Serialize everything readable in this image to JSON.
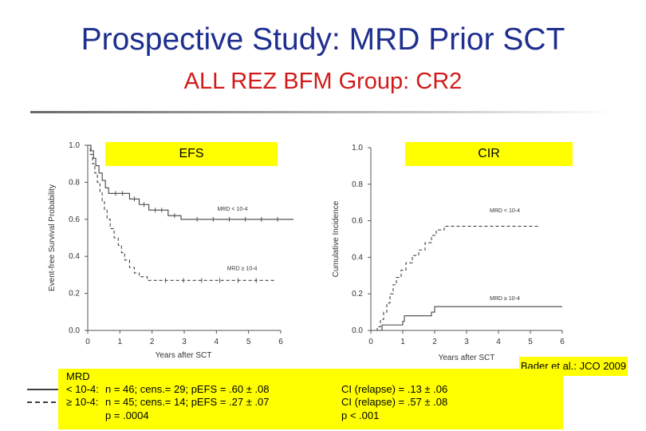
{
  "slide": {
    "title": "Prospective Study: MRD Prior SCT",
    "subtitle": "ALL REZ BFM Group: CR2",
    "citation": "Bader et al.: JCO 2009"
  },
  "legend": {
    "header": "MRD",
    "low_label": "< 10-4:",
    "high_label": "≥ 10-4:",
    "low_stats": "n = 46; cens.= 29; pEFS = .60 ± .08",
    "high_stats": "n = 45; cens.= 14; pEFS = .27 ± .07",
    "efs_pvalue": "p = .0004",
    "ci_low": "CI (relapse) = .13 ± .06",
    "ci_high": "CI (relapse) = .57 ± .08",
    "ci_pvalue": "p < .001"
  },
  "chart_data": [
    {
      "type": "line",
      "title": "EFS",
      "xlabel": "Years after SCT",
      "ylabel": "Event-free Survival Probability",
      "xlim": [
        0,
        6
      ],
      "ylim": [
        0,
        1
      ],
      "x_ticks": [
        "0",
        "1",
        "2",
        "3",
        "4",
        "5",
        "6"
      ],
      "y_ticks": [
        "0.0",
        "0.2",
        "0.4",
        "0.6",
        "0.8",
        "1.0"
      ],
      "series": [
        {
          "name": "MRD < 10-4",
          "style": "solid",
          "points": [
            [
              0,
              1.0
            ],
            [
              0.1,
              0.97
            ],
            [
              0.18,
              0.93
            ],
            [
              0.25,
              0.89
            ],
            [
              0.35,
              0.85
            ],
            [
              0.45,
              0.81
            ],
            [
              0.55,
              0.77
            ],
            [
              0.65,
              0.74
            ],
            [
              1.3,
              0.71
            ],
            [
              1.6,
              0.68
            ],
            [
              1.9,
              0.65
            ],
            [
              2.5,
              0.62
            ],
            [
              2.9,
              0.6
            ],
            [
              6.4,
              0.6
            ]
          ],
          "annotation": "MRD < 10-4"
        },
        {
          "name": "MRD ≥ 10-4",
          "style": "dashed",
          "points": [
            [
              0,
              1.0
            ],
            [
              0.08,
              0.95
            ],
            [
              0.15,
              0.9
            ],
            [
              0.22,
              0.85
            ],
            [
              0.3,
              0.8
            ],
            [
              0.38,
              0.75
            ],
            [
              0.45,
              0.7
            ],
            [
              0.52,
              0.65
            ],
            [
              0.6,
              0.6
            ],
            [
              0.7,
              0.55
            ],
            [
              0.82,
              0.5
            ],
            [
              0.95,
              0.46
            ],
            [
              1.05,
              0.42
            ],
            [
              1.15,
              0.38
            ],
            [
              1.3,
              0.34
            ],
            [
              1.45,
              0.31
            ],
            [
              1.6,
              0.29
            ],
            [
              1.85,
              0.27
            ],
            [
              5.8,
              0.27
            ]
          ],
          "annotation": "MRD ≥ 10-4"
        }
      ]
    },
    {
      "type": "line",
      "title": "CIR",
      "xlabel": "Years after SCT",
      "ylabel": "Cumulative Incidence",
      "xlim": [
        0,
        6
      ],
      "ylim": [
        0,
        1
      ],
      "x_ticks": [
        "0",
        "1",
        "2",
        "3",
        "4",
        "5",
        "6"
      ],
      "y_ticks": [
        "0.0",
        "0.2",
        "0.4",
        "0.6",
        "0.8",
        "1.0"
      ],
      "series": [
        {
          "name": "MRD < 10-4",
          "style": "solid",
          "points": [
            [
              0,
              0
            ],
            [
              0.3,
              0
            ],
            [
              0.35,
              0.03
            ],
            [
              1.0,
              0.05
            ],
            [
              1.05,
              0.08
            ],
            [
              1.9,
              0.1
            ],
            [
              2.0,
              0.13
            ],
            [
              6.0,
              0.13
            ]
          ],
          "annotation": "MRD < 10-4"
        },
        {
          "name": "MRD ≥ 10-4",
          "style": "dashed",
          "points": [
            [
              0,
              0
            ],
            [
              0.2,
              0.02
            ],
            [
              0.3,
              0.06
            ],
            [
              0.4,
              0.1
            ],
            [
              0.5,
              0.15
            ],
            [
              0.6,
              0.2
            ],
            [
              0.7,
              0.25
            ],
            [
              0.8,
              0.29
            ],
            [
              0.95,
              0.33
            ],
            [
              1.1,
              0.37
            ],
            [
              1.3,
              0.41
            ],
            [
              1.5,
              0.44
            ],
            [
              1.7,
              0.48
            ],
            [
              1.9,
              0.52
            ],
            [
              2.05,
              0.55
            ],
            [
              2.3,
              0.57
            ],
            [
              5.3,
              0.57
            ]
          ],
          "annotation": "MRD ≥ 10-4"
        }
      ]
    }
  ]
}
